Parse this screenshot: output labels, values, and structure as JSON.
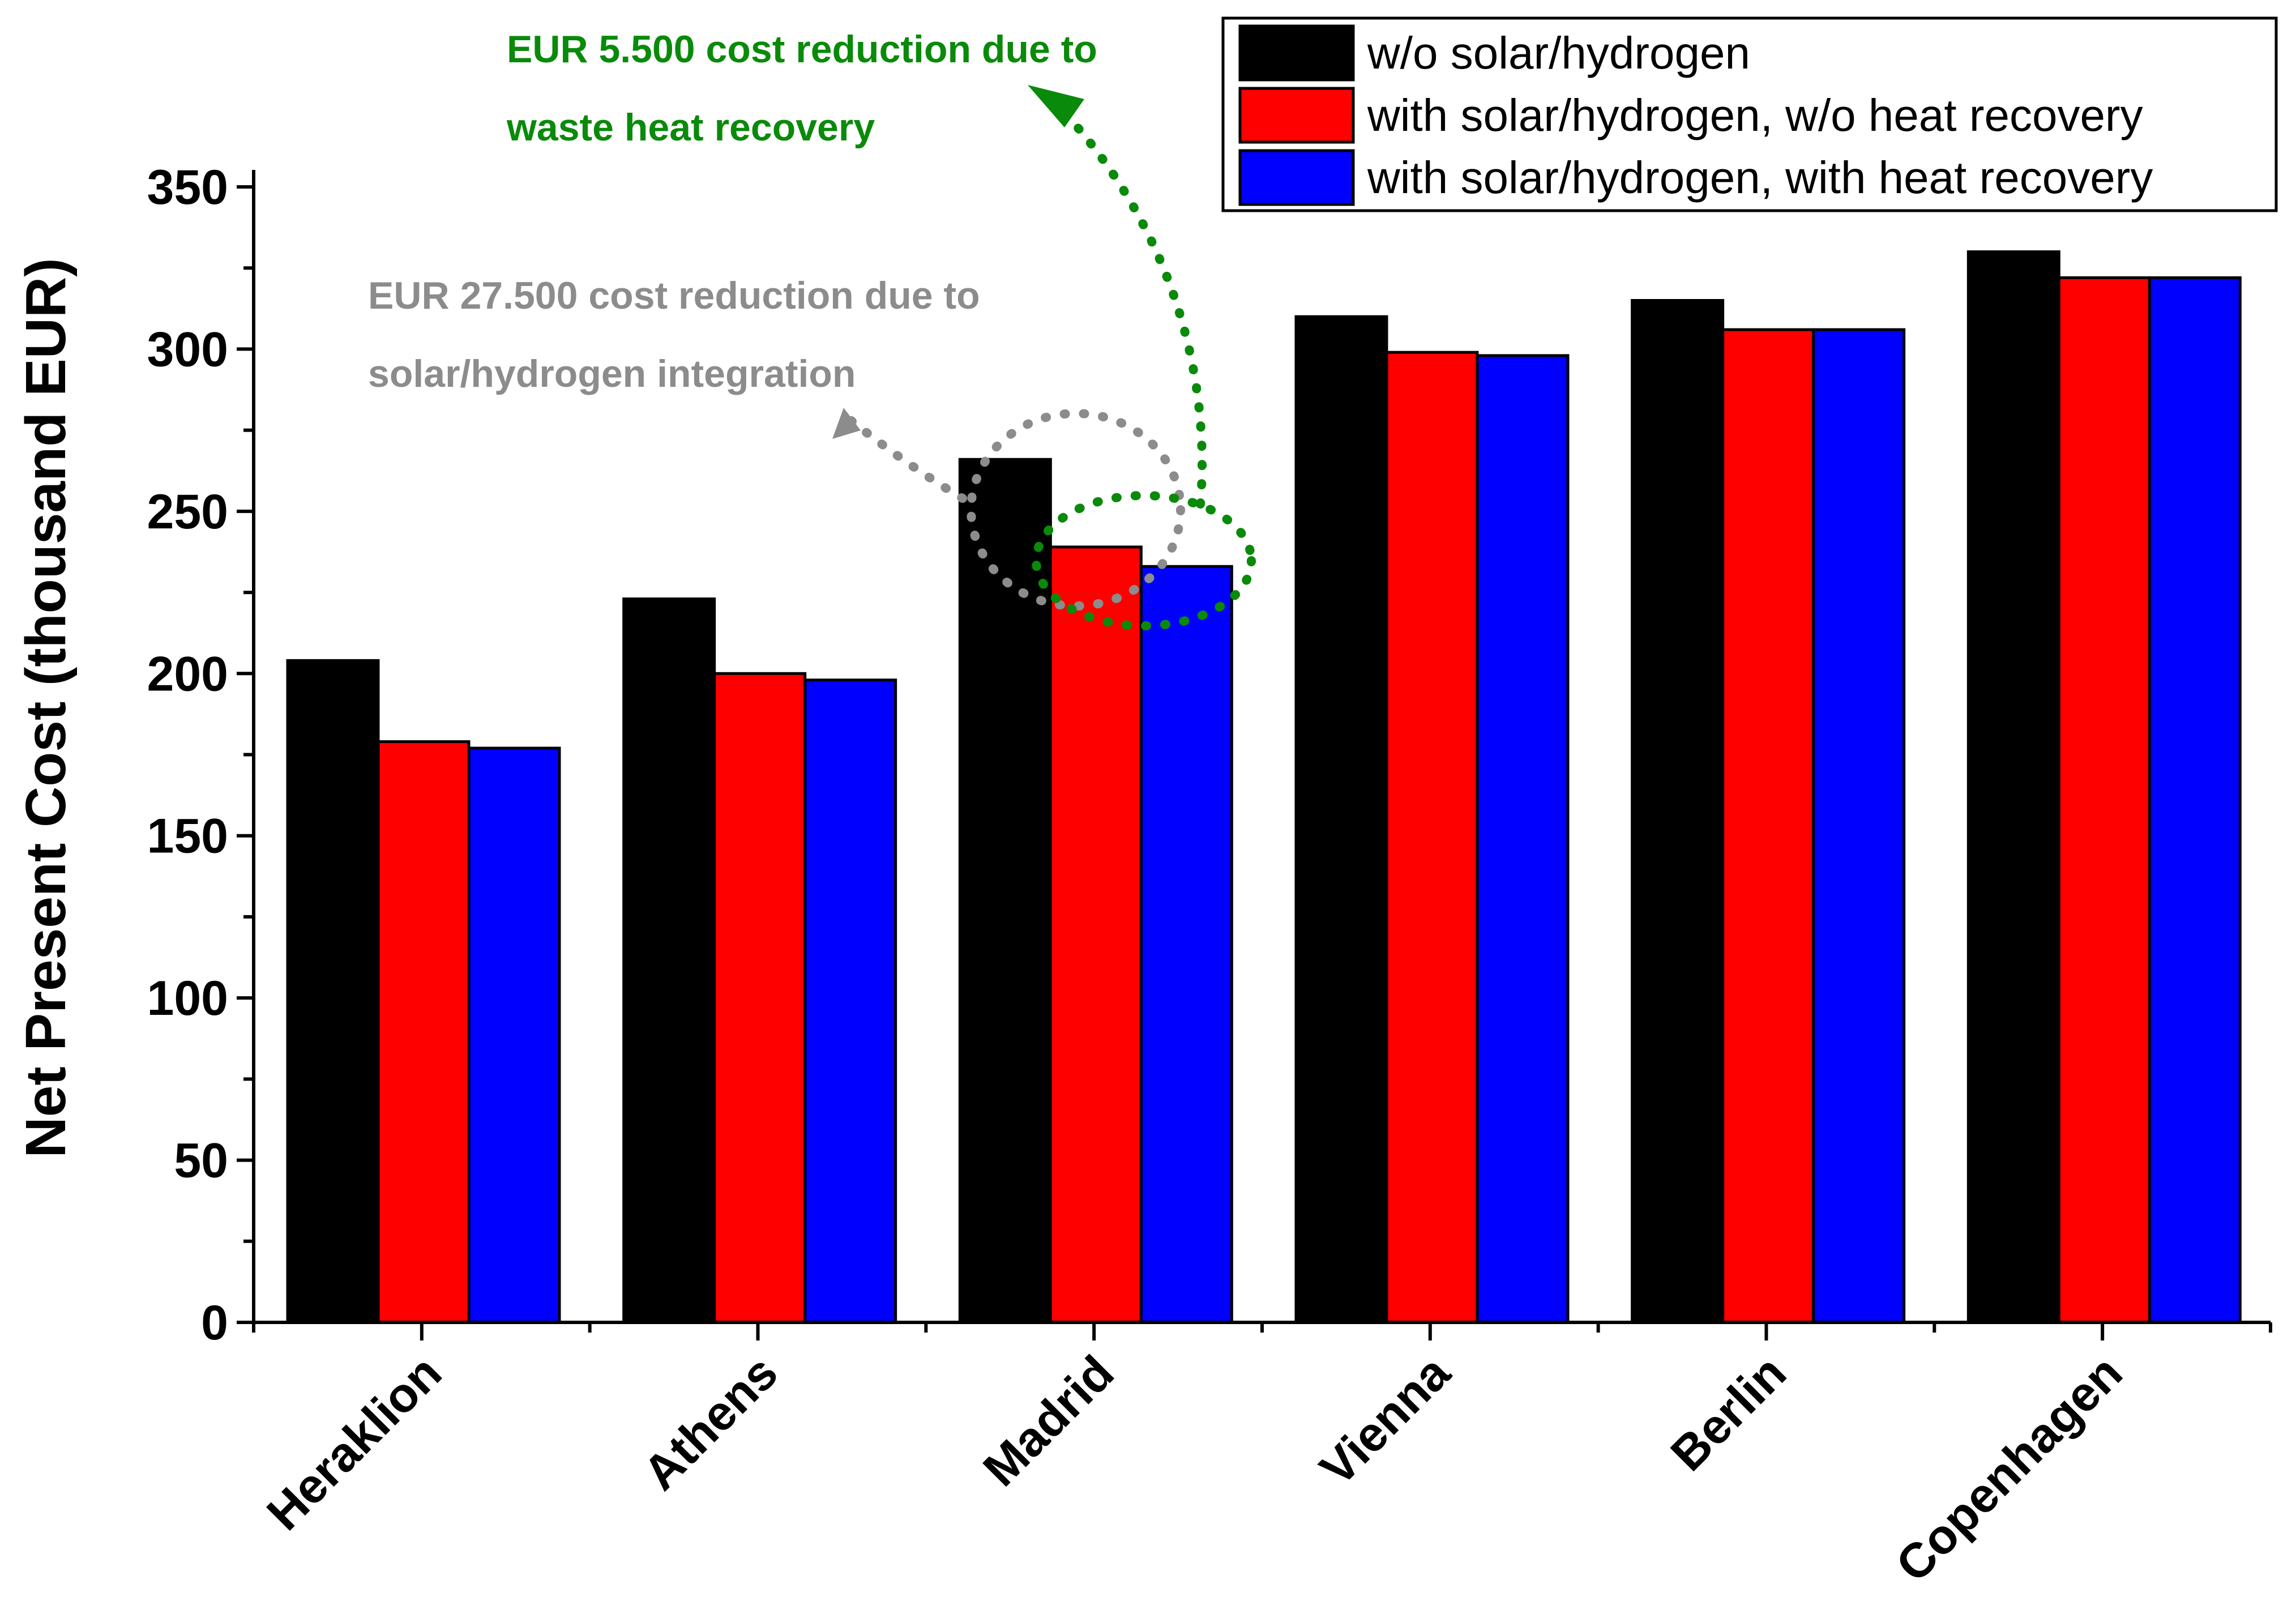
{
  "chart_data": {
    "type": "bar",
    "title": "",
    "xlabel": "",
    "ylabel": "Net Present Cost (thousand EUR)",
    "ylim": [
      0,
      350
    ],
    "yticks": [
      0,
      50,
      100,
      150,
      200,
      250,
      300,
      350
    ],
    "grid": false,
    "legend_position": "top-right",
    "categories": [
      "Heraklion",
      "Athens",
      "Madrid",
      "Vienna",
      "Berlin",
      "Copenhagen"
    ],
    "series": [
      {
        "name": "w/o solar/hydrogen",
        "color": "#000000",
        "values": [
          204,
          223,
          266,
          310,
          315,
          330
        ]
      },
      {
        "name": "with solar/hydrogen, w/o heat recovery",
        "color": "#ff0000",
        "values": [
          179,
          200,
          239,
          299,
          306,
          322
        ]
      },
      {
        "name": "with solar/hydrogen, with heat recovery",
        "color": "#0000ff",
        "values": [
          177,
          198,
          233,
          298,
          306,
          322
        ]
      }
    ],
    "annotations": [
      {
        "id": "green",
        "lines": [
          "EUR 5.500 cost reduction due to",
          "waste heat recovery"
        ],
        "color": "#0a8a0a"
      },
      {
        "id": "gray",
        "lines": [
          "EUR 27.500 cost reduction due to",
          "solar/hydrogen integration"
        ],
        "color": "#8c8c8c"
      }
    ]
  }
}
